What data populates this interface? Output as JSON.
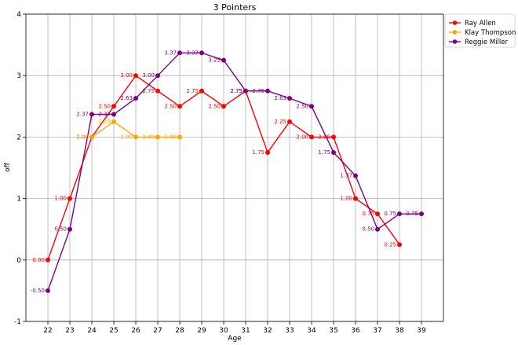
{
  "chart_data": {
    "type": "line",
    "title": "3 Pointers",
    "xlabel": "Age",
    "ylabel": "off",
    "xlim": [
      21,
      40
    ],
    "ylim": [
      -1,
      4
    ],
    "x_ticks": [
      22,
      23,
      24,
      25,
      26,
      27,
      28,
      29,
      30,
      31,
      32,
      33,
      34,
      35,
      36,
      37,
      38,
      39
    ],
    "y_ticks": [
      -1,
      0,
      1,
      2,
      3,
      4
    ],
    "grid": true,
    "legend_position": "outside-top-right",
    "series": [
      {
        "name": "Ray Allen",
        "color": "#ff0000",
        "x": [
          22,
          23,
          24,
          25,
          26,
          27,
          28,
          29,
          30,
          31,
          32,
          33,
          34,
          35,
          36,
          37,
          38
        ],
        "y": [
          0.0,
          1.0,
          2.0,
          2.5,
          3.0,
          2.75,
          2.5,
          2.75,
          2.5,
          2.75,
          1.75,
          2.25,
          2.0,
          2.0,
          1.0,
          0.75,
          0.25
        ],
        "labels": [
          "0.00",
          "1.00",
          "2.00",
          "2.50",
          "3.00",
          "2.75",
          "2.50",
          "2.75",
          "2.50",
          "2.75",
          "1.75",
          "2.25",
          "2.00",
          "2.00",
          "1.00",
          "0.75",
          "0.25"
        ]
      },
      {
        "name": "Klay Thompson",
        "color": "#ffa500",
        "x": [
          24,
          25,
          26,
          27,
          28
        ],
        "y": [
          2.0,
          2.25,
          2.0,
          2.0,
          2.0
        ],
        "labels": [
          "2.00",
          "2.25",
          "2.00",
          "2.00",
          "2.00"
        ]
      },
      {
        "name": "Reggie Miller",
        "color": "#800080",
        "x": [
          22,
          23,
          24,
          25,
          26,
          27,
          28,
          29,
          30,
          31,
          32,
          33,
          34,
          35,
          36,
          37,
          38,
          39
        ],
        "y": [
          -0.5,
          0.5,
          2.37,
          2.37,
          2.63,
          3.0,
          3.37,
          3.37,
          3.25,
          2.75,
          2.75,
          2.63,
          2.5,
          1.75,
          1.37,
          0.5,
          0.75,
          0.75
        ],
        "labels": [
          "-0.50",
          "0.50",
          "2.37",
          "2.37",
          "2.63",
          "3.00",
          "3.37",
          "3.37",
          "3.25",
          "2.75",
          "2.75",
          "2.63",
          "2.50",
          "1.75",
          "1.37",
          "0.50",
          "0.75",
          "0.75"
        ]
      }
    ]
  }
}
